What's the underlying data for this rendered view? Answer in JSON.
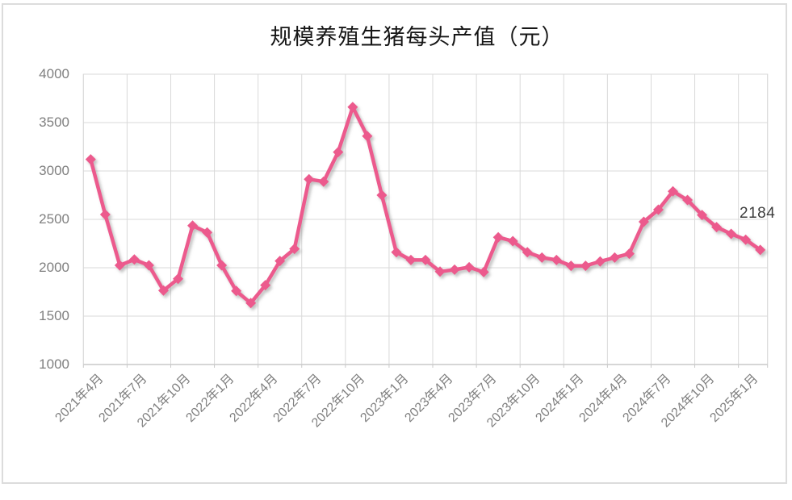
{
  "chart_title": "规模养殖生猪每头产值（元）",
  "end_point_label": "2184",
  "colors": {
    "line": "#EC5A8D",
    "marker": "#EC5A8D",
    "grid": "#D9D9D9",
    "axis_line": "#C9C9C9",
    "frame": "#DCDCDC",
    "axis_text": "#7F7F7F",
    "title_text": "#161616",
    "end_label_text": "#3D3D3D",
    "background": "#FFFFFF"
  },
  "chart_data": {
    "type": "line",
    "title": "规模养殖生猪每头产值（元）",
    "xlabel": "",
    "ylabel": "",
    "ylim": [
      1000,
      4000
    ],
    "y_ticks": [
      4000,
      3500,
      3000,
      2500,
      2000,
      1500,
      1000
    ],
    "grid": "on",
    "legend": "none",
    "marker": "diamond",
    "x_tick_labels": [
      "2021年4月",
      "2021年7月",
      "2021年10月",
      "2022年1月",
      "2022年4月",
      "2022年7月",
      "2022年10月",
      "2023年1月",
      "2023年4月",
      "2023年7月",
      "2023年10月",
      "2024年1月",
      "2024年4月",
      "2024年7月",
      "2024年10月",
      "2025年1月"
    ],
    "x_tick_every_n_points": 3,
    "months": [
      "2021-04",
      "2021-05",
      "2021-06",
      "2021-07",
      "2021-08",
      "2021-09",
      "2021-10",
      "2021-11",
      "2021-12",
      "2022-01",
      "2022-02",
      "2022-03",
      "2022-04",
      "2022-05",
      "2022-06",
      "2022-07",
      "2022-08",
      "2022-09",
      "2022-10",
      "2022-11",
      "2022-12",
      "2023-01",
      "2023-02",
      "2023-03",
      "2023-04",
      "2023-05",
      "2023-06",
      "2023-07",
      "2023-08",
      "2023-09",
      "2023-10",
      "2023-11",
      "2023-12",
      "2024-01",
      "2024-02",
      "2024-03",
      "2024-04",
      "2024-05",
      "2024-06",
      "2024-07",
      "2024-08",
      "2024-09",
      "2024-10",
      "2024-11",
      "2024-12",
      "2025-01",
      "2025-02"
    ],
    "values": [
      3120,
      2550,
      2025,
      2085,
      2025,
      1765,
      1885,
      2435,
      2365,
      2025,
      1760,
      1635,
      1820,
      2070,
      2195,
      2915,
      2890,
      3195,
      3660,
      3360,
      2750,
      2160,
      2080,
      2080,
      1960,
      1980,
      2005,
      1955,
      2315,
      2275,
      2160,
      2105,
      2080,
      2020,
      2020,
      2065,
      2105,
      2145,
      2475,
      2600,
      2790,
      2700,
      2545,
      2420,
      2350,
      2290,
      2184
    ],
    "last_point_label": "2184"
  }
}
